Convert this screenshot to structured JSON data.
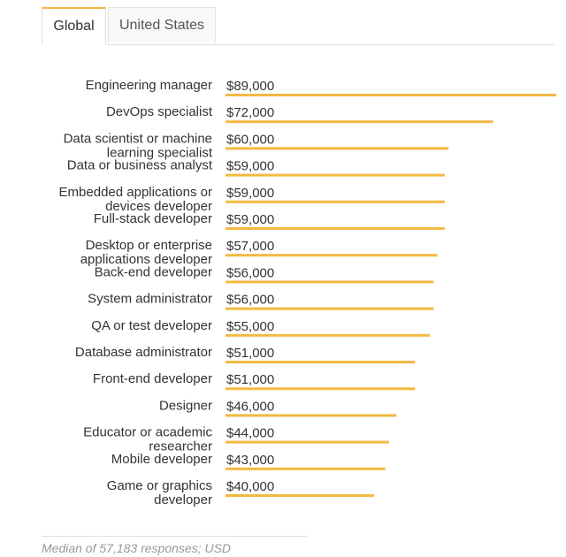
{
  "tabs": {
    "global_label": "Global",
    "us_label": "United States"
  },
  "footnote": "Median of 57,183 responses; USD",
  "colors": {
    "bar": "#f4b942",
    "active_tab_accent": "#f4b942",
    "label_text": "#333333"
  },
  "chart_data": {
    "type": "bar",
    "orientation": "horizontal",
    "title": "",
    "xlabel": "",
    "ylabel": "",
    "unit": "USD",
    "xlim": [
      0,
      89000
    ],
    "grid": false,
    "legend": "none",
    "categories": [
      [
        "Engineering manager"
      ],
      [
        "DevOps specialist"
      ],
      [
        "Data scientist or machine",
        "learning specialist"
      ],
      [
        "Data or business analyst"
      ],
      [
        "Embedded applications or",
        "devices developer"
      ],
      [
        "Full-stack developer"
      ],
      [
        "Desktop or enterprise",
        "applications developer"
      ],
      [
        "Back-end developer"
      ],
      [
        "System administrator"
      ],
      [
        "QA or test developer"
      ],
      [
        "Database administrator"
      ],
      [
        "Front-end developer"
      ],
      [
        "Designer"
      ],
      [
        "Educator or academic",
        "researcher"
      ],
      [
        "Mobile developer"
      ],
      [
        "Game or graphics",
        "developer"
      ]
    ],
    "values": [
      89000,
      72000,
      60000,
      59000,
      59000,
      59000,
      57000,
      56000,
      56000,
      55000,
      51000,
      51000,
      46000,
      44000,
      43000,
      40000
    ],
    "value_labels": [
      "$89,000",
      "$72,000",
      "$60,000",
      "$59,000",
      "$59,000",
      "$59,000",
      "$57,000",
      "$56,000",
      "$56,000",
      "$55,000",
      "$51,000",
      "$51,000",
      "$46,000",
      "$44,000",
      "$43,000",
      "$40,000"
    ]
  }
}
